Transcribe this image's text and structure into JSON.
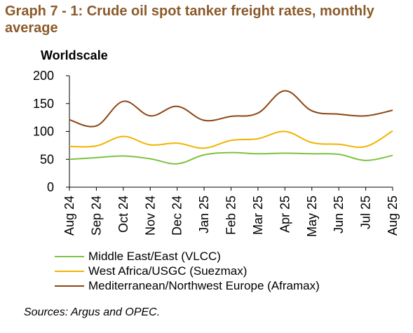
{
  "title": "Graph 7 - 1: Crude oil spot tanker freight rates, monthly average",
  "source": "Sources: Argus and OPEC.",
  "chart_data": {
    "type": "line",
    "title": "Graph 7 - 1: Crude oil spot tanker freight rates, monthly average",
    "ylabel": "Worldscale",
    "xlabel": "",
    "ylim": [
      0,
      200
    ],
    "yticks": [
      0,
      50,
      100,
      150,
      200
    ],
    "grid": false,
    "legend_position": "bottom",
    "categories": [
      "Aug 24",
      "Sep 24",
      "Oct 24",
      "Nov 24",
      "Dec 24",
      "Jan 25",
      "Feb 25",
      "Mar 25",
      "Apr 25",
      "May 25",
      "Jun 25",
      "Jul 25",
      "Aug 25"
    ],
    "series": [
      {
        "name": "Middle East/East (VLCC)",
        "color": "#7DC242",
        "values": [
          50,
          53,
          56,
          51,
          42,
          58,
          62,
          60,
          61,
          60,
          59,
          48,
          57
        ]
      },
      {
        "name": "West Africa/USGC (Suezmax)",
        "color": "#F0B400",
        "values": [
          73,
          74,
          91,
          76,
          79,
          70,
          84,
          87,
          100,
          80,
          77,
          73,
          101
        ]
      },
      {
        "name": "Mediterranean/Northwest Europe (Aframax)",
        "color": "#8B4513",
        "values": [
          121,
          110,
          154,
          128,
          145,
          120,
          127,
          133,
          173,
          137,
          131,
          128,
          138
        ]
      }
    ]
  }
}
